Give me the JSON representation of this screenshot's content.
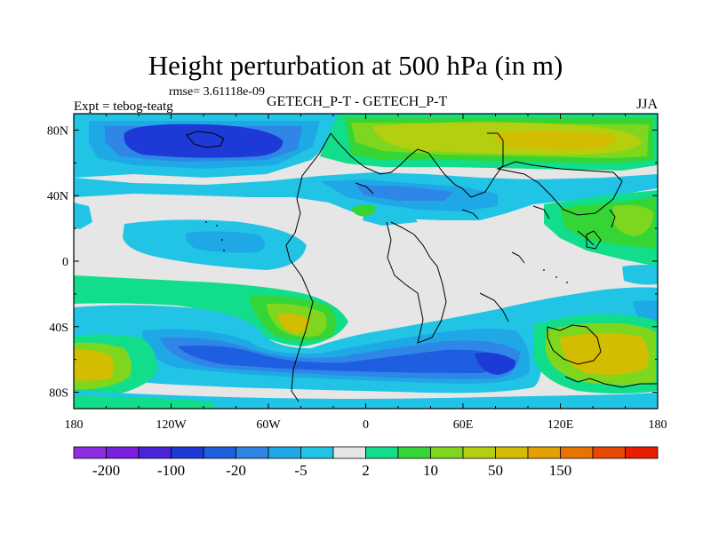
{
  "header": {
    "title": "Height perturbation at 500 hPa (in m)",
    "rmse": "rmse= 3.61118e-09",
    "expt": "Expt = tebog-teatg",
    "subtitle": "GETECH_P-T - GETECH_P-T",
    "season": "JJA"
  },
  "axes": {
    "lat_ticks": [
      {
        "value": 80,
        "label": "80N"
      },
      {
        "value": 40,
        "label": "40N"
      },
      {
        "value": 0,
        "label": "0"
      },
      {
        "value": -40,
        "label": "40S"
      },
      {
        "value": -80,
        "label": "80S"
      }
    ],
    "lon_ticks": [
      {
        "value": -180,
        "label": "180"
      },
      {
        "value": -120,
        "label": "120W"
      },
      {
        "value": -60,
        "label": "60W"
      },
      {
        "value": 0,
        "label": "0"
      },
      {
        "value": 60,
        "label": "60E"
      },
      {
        "value": 120,
        "label": "120E"
      },
      {
        "value": 180,
        "label": "180"
      }
    ],
    "lat_range": [
      -90,
      90
    ],
    "lon_range": [
      -180,
      180
    ]
  },
  "colorbar": {
    "colors": [
      "#8e2de2",
      "#7a1fe0",
      "#4a25d8",
      "#1d3ad6",
      "#1e5ee0",
      "#2f86e6",
      "#1ea8e6",
      "#22c4e6",
      "#e6e6e6",
      "#12dd8a",
      "#35d535",
      "#7fd61e",
      "#b4cf0f",
      "#d3bd00",
      "#e3a000",
      "#e87400",
      "#e84800",
      "#e81e00"
    ],
    "labels": [
      {
        "after_box": 1,
        "text": "-200"
      },
      {
        "after_box": 3,
        "text": "-100"
      },
      {
        "after_box": 5,
        "text": "-20"
      },
      {
        "after_box": 7,
        "text": "-5"
      },
      {
        "after_box": 9,
        "text": "2"
      },
      {
        "after_box": 11,
        "text": "10"
      },
      {
        "after_box": 13,
        "text": "50"
      },
      {
        "after_box": 15,
        "text": "150"
      }
    ]
  },
  "chart_data": {
    "type": "heatmap",
    "title": "Height perturbation at 500 hPa (in m)",
    "variable": "500 hPa height perturbation",
    "units": "m",
    "xlabel": "",
    "ylabel": "",
    "xlim": [
      -180,
      180
    ],
    "ylim": [
      -90,
      90
    ],
    "levels": [
      -200,
      -100,
      -20,
      -5,
      2,
      10,
      50,
      150
    ],
    "features": [
      {
        "name": "arctic-low",
        "lon": -90,
        "lat": 78,
        "value": -100,
        "level": "strong-negative"
      },
      {
        "name": "north-pacific-low-band",
        "lon": -150,
        "lat": 78,
        "value": -20,
        "level": "negative"
      },
      {
        "name": "arctic-high",
        "lon": 60,
        "lat": 72,
        "value": 50,
        "level": "positive"
      },
      {
        "name": "midlat-north-negative-band",
        "lon": -40,
        "lat": 45,
        "value": -5,
        "level": "weak-negative"
      },
      {
        "name": "north-subtropic-negative",
        "lon": -120,
        "lat": 18,
        "value": -5,
        "level": "weak-negative"
      },
      {
        "name": "east-asia-positive",
        "lon": 145,
        "lat": 25,
        "value": 10,
        "level": "positive"
      },
      {
        "name": "south-subtropic-positive",
        "lon": -40,
        "lat": -37,
        "value": 50,
        "level": "positive"
      },
      {
        "name": "southern-ocean-positive-west",
        "lon": -170,
        "lat": -60,
        "value": 50,
        "level": "positive"
      },
      {
        "name": "southern-ocean-positive-east",
        "lon": 140,
        "lat": -57,
        "value": 50,
        "level": "positive"
      },
      {
        "name": "southern-midlat-low",
        "lon": 70,
        "lat": -63,
        "value": -100,
        "level": "strong-negative"
      },
      {
        "name": "southern-midlat-negative-band",
        "lon": -90,
        "lat": -55,
        "value": -20,
        "level": "negative"
      }
    ]
  }
}
